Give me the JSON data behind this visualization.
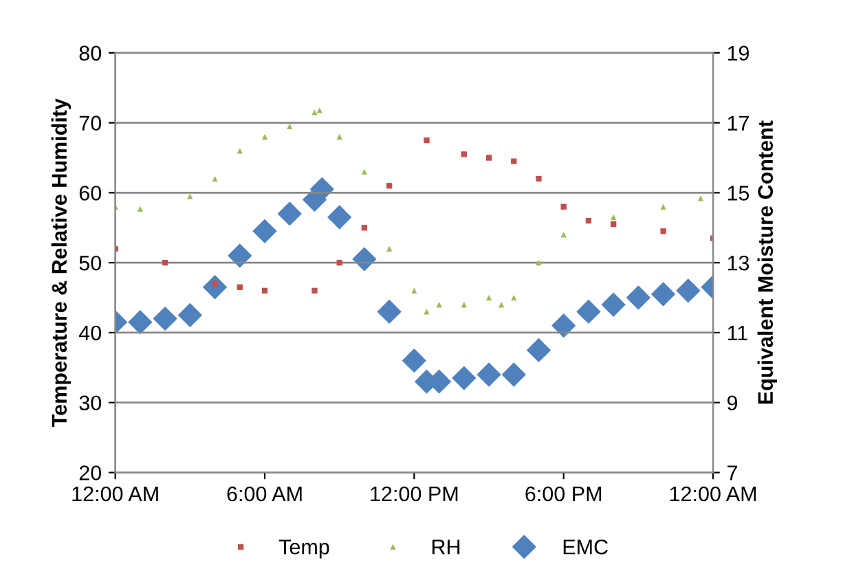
{
  "chart_data": {
    "type": "scatter",
    "ylabel": "Temperature & Relative Humidity",
    "y2label": "Equivalent Moisture Content",
    "xlim": [
      0,
      24
    ],
    "xticks": [
      {
        "value": 0,
        "label": "12:00 AM"
      },
      {
        "value": 6,
        "label": "6:00 AM"
      },
      {
        "value": 12,
        "label": "12:00 PM"
      },
      {
        "value": 18,
        "label": "6:00 PM"
      },
      {
        "value": 24,
        "label": "12:00 AM"
      }
    ],
    "ylim": [
      20,
      80
    ],
    "yticks": [
      20,
      30,
      40,
      50,
      60,
      70,
      80
    ],
    "y2lim": [
      7,
      19
    ],
    "y2ticks": [
      7,
      9,
      11,
      13,
      15,
      17,
      19
    ],
    "grid": "y",
    "legend": "bottom",
    "series": [
      {
        "name": "Temp",
        "color": "#c0504d",
        "marker": "square",
        "x": [
          0,
          2,
          4,
          5,
          6,
          8,
          9,
          10,
          11,
          12.5,
          14,
          15,
          16,
          17,
          18,
          19,
          20,
          22,
          24
        ],
        "values": [
          52,
          50,
          47,
          46.5,
          46,
          46,
          50,
          55,
          61,
          67.5,
          65.5,
          65,
          64.5,
          62,
          58,
          56,
          55.5,
          54.5,
          53.5
        ]
      },
      {
        "name": "RH",
        "color": "#9bbb59",
        "marker": "triangle",
        "x": [
          0,
          1,
          3,
          4,
          5,
          6,
          7,
          8,
          8.2,
          9,
          10,
          11,
          12,
          12.5,
          13,
          14,
          15,
          15.5,
          16,
          17,
          18,
          20,
          22,
          23.5
        ],
        "values": [
          58,
          57.7,
          59.5,
          62,
          66,
          68,
          69.5,
          71.5,
          71.8,
          68,
          63,
          52,
          46,
          43,
          44,
          44,
          45,
          44,
          45,
          50,
          54,
          56.5,
          58,
          59.2
        ]
      },
      {
        "name": "EMC",
        "color": "#4f81bd",
        "marker": "diamond",
        "axis": "y2",
        "x": [
          0,
          1,
          2,
          3,
          4,
          5,
          6,
          7,
          8,
          8.3,
          9,
          10,
          11,
          12,
          12.5,
          13,
          14,
          15,
          16,
          17,
          18,
          19,
          20,
          21,
          22,
          23,
          24
        ],
        "values": [
          11.3,
          11.3,
          11.4,
          11.5,
          12.3,
          13.2,
          13.9,
          14.4,
          14.8,
          15.1,
          14.3,
          13.1,
          11.6,
          10.2,
          9.6,
          9.6,
          9.7,
          9.8,
          9.8,
          10.5,
          11.2,
          11.6,
          11.8,
          12.0,
          12.1,
          12.2,
          12.3
        ]
      }
    ]
  }
}
